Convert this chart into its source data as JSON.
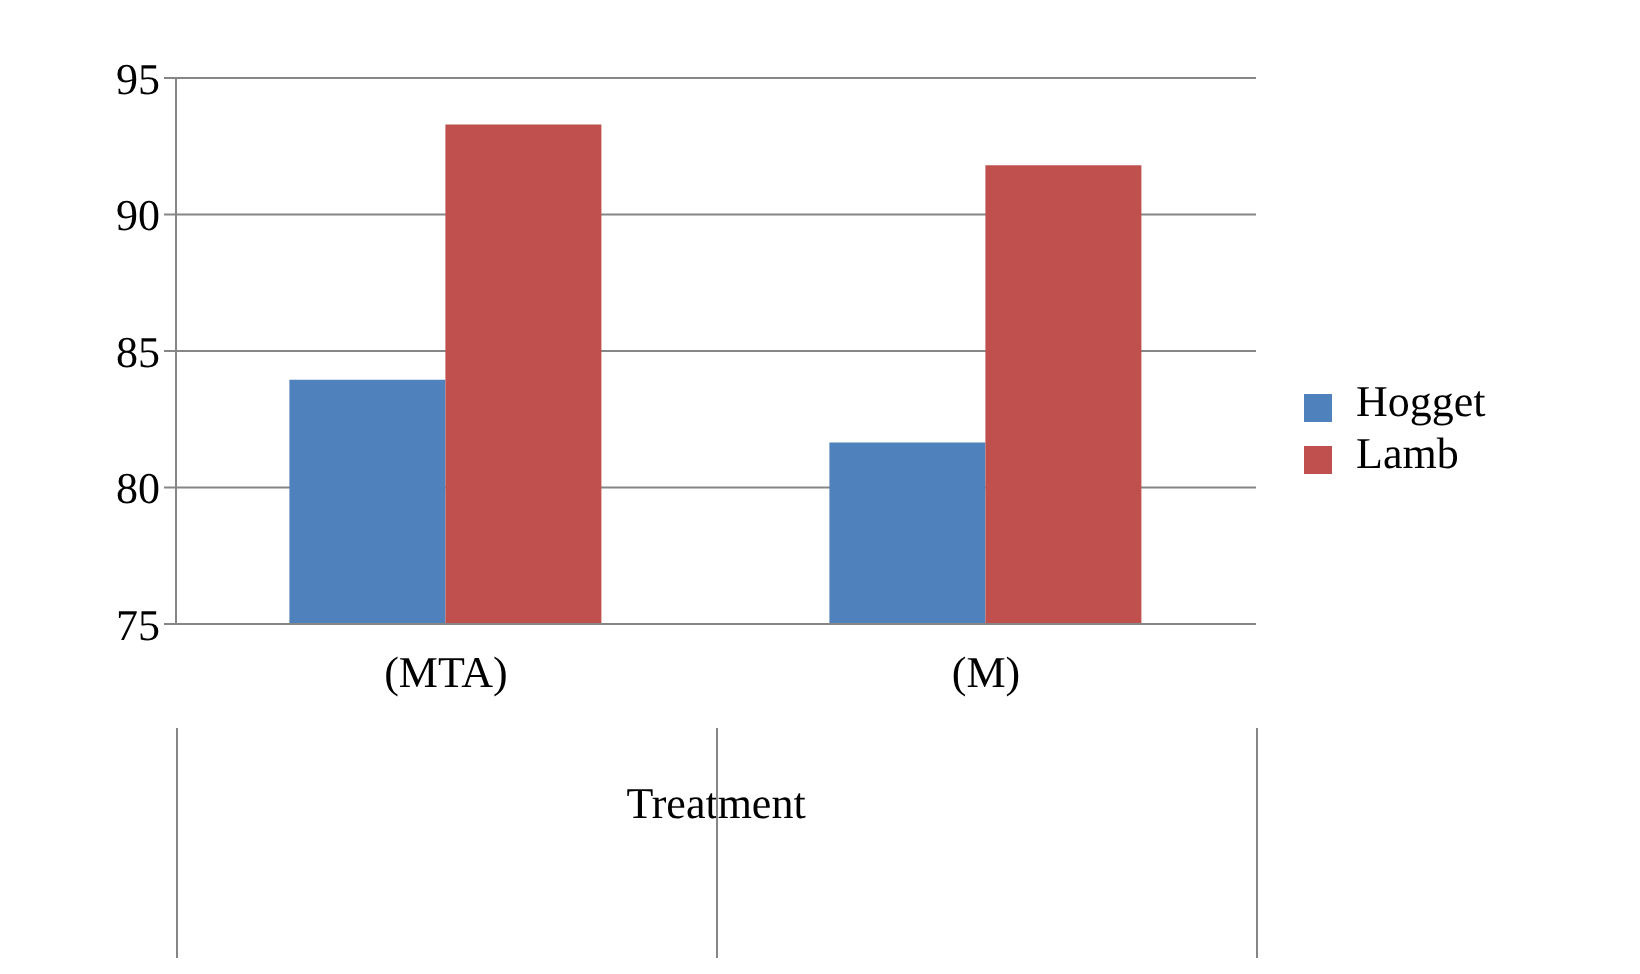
{
  "chart_data": {
    "type": "bar",
    "xlabel": "Treatment",
    "categories": [
      "(MTA)",
      "(M)"
    ],
    "series": [
      {
        "name": "Hogget",
        "color": "#4f81bd",
        "values": [
          83.95,
          81.65
        ]
      },
      {
        "name": "Lamb",
        "color": "#c0504d",
        "values": [
          93.3,
          91.8
        ]
      }
    ],
    "ylim": [
      75,
      95
    ],
    "yticks": [
      75,
      80,
      85,
      90,
      95
    ],
    "grid": "y",
    "legend": "right"
  }
}
